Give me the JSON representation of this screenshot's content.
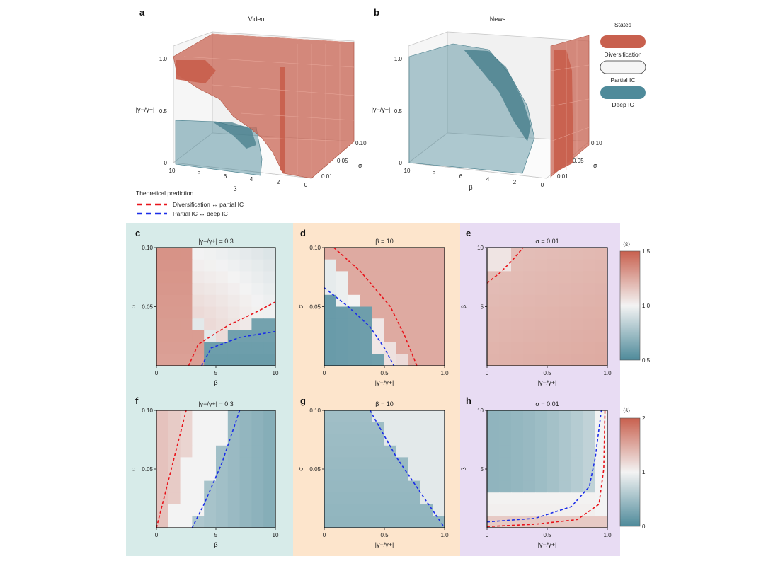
{
  "colors": {
    "diversification": "#c8604e",
    "partial_ic": "#f5f5f5",
    "deep_ic": "#4e8a9a",
    "red_line": "#e8141b",
    "blue_line": "#1b2ee8",
    "bg_teal": "#d7ebe9",
    "bg_orange": "#fde5cc",
    "bg_purple": "#e8dcf3"
  },
  "top": {
    "panel_a": {
      "letter": "a",
      "title": "Video",
      "z_label": "|γ−/γ+|",
      "x_label": "β",
      "y_label": "σ",
      "x_ticks": [
        "10",
        "8",
        "6",
        "4",
        "2",
        "0"
      ],
      "y_ticks": [
        "0.01",
        "0.05",
        "0.10"
      ],
      "z_ticks": [
        "0",
        "0.5",
        "1.0"
      ]
    },
    "panel_b": {
      "letter": "b",
      "title": "News",
      "z_label": "|γ−/γ+|",
      "x_label": "β",
      "y_label": "σ",
      "x_ticks": [
        "10",
        "8",
        "6",
        "4",
        "2",
        "0"
      ],
      "y_ticks": [
        "0.01",
        "0.05",
        "0.10"
      ],
      "z_ticks": [
        "0",
        "0.5",
        "1.0"
      ]
    },
    "states_legend": {
      "title": "States",
      "items": [
        "Diversification",
        "Partial IC",
        "Deep IC"
      ]
    },
    "theory_legend": {
      "title": "Theoretical prediction",
      "items": [
        "Diversification ↔ partial IC",
        "Partial IC ↔ deep IC"
      ]
    }
  },
  "colorbars": [
    {
      "label": "⟨s̄⟩",
      "ticks": [
        "1.5",
        "1.0",
        "0.5"
      ],
      "range": [
        0.5,
        1.5
      ]
    },
    {
      "label": "⟨s̄⟩",
      "ticks": [
        "2",
        "1",
        "0"
      ],
      "range": [
        0,
        2
      ]
    }
  ],
  "chart_data": [
    {
      "id": "c",
      "type": "heatmap",
      "title": "|γ−/γ+| = 0.3",
      "xlabel": "β",
      "ylabel": "σ",
      "xlim": [
        0,
        10
      ],
      "ylim": [
        0,
        0.1
      ],
      "xticks": [
        "0",
        "5",
        "10"
      ],
      "yticks": [
        "0.05",
        "0.10"
      ],
      "grid_shape": [
        10,
        10
      ],
      "value_range": [
        0.5,
        1.5
      ],
      "boundary_red": [
        [
          2.7,
          0.0
        ],
        [
          3.5,
          0.018
        ],
        [
          6.0,
          0.034
        ],
        [
          8.5,
          0.046
        ],
        [
          10,
          0.054
        ]
      ],
      "boundary_blue": [
        [
          3.8,
          0.0
        ],
        [
          4.6,
          0.015
        ],
        [
          7.0,
          0.024
        ],
        [
          10,
          0.029
        ]
      ]
    },
    {
      "id": "d",
      "type": "heatmap",
      "title": "β = 10",
      "xlabel": "|γ−/γ+|",
      "ylabel": "σ",
      "xlim": [
        0,
        1
      ],
      "ylim": [
        0,
        0.1
      ],
      "xticks": [
        "0",
        "0.5",
        "1.0"
      ],
      "yticks": [
        "0.05",
        "0.10"
      ],
      "grid_shape": [
        10,
        10
      ],
      "value_range": [
        0.5,
        1.5
      ],
      "boundary_red": [
        [
          0.08,
          0.1
        ],
        [
          0.3,
          0.08
        ],
        [
          0.55,
          0.05
        ],
        [
          0.67,
          0.025
        ],
        [
          0.77,
          0.0
        ]
      ],
      "boundary_blue": [
        [
          0.0,
          0.066
        ],
        [
          0.2,
          0.05
        ],
        [
          0.38,
          0.033
        ],
        [
          0.5,
          0.015
        ],
        [
          0.58,
          0.0
        ]
      ]
    },
    {
      "id": "e",
      "type": "heatmap",
      "title": "σ = 0.01",
      "xlabel": "|γ−/γ+|",
      "ylabel": "β",
      "xlim": [
        0,
        1
      ],
      "ylim": [
        0,
        10
      ],
      "xticks": [
        "0",
        "0.5",
        "1.0"
      ],
      "yticks": [
        "5",
        "10"
      ],
      "grid_shape": [
        10,
        10
      ],
      "value_range": [
        0.5,
        1.5
      ],
      "boundary_red": [
        [
          0.0,
          7.0
        ],
        [
          0.1,
          7.8
        ],
        [
          0.2,
          8.8
        ],
        [
          0.3,
          10
        ]
      ]
    },
    {
      "id": "f",
      "type": "heatmap",
      "title": "|γ−/γ+| = 0.3",
      "xlabel": "β",
      "ylabel": "σ",
      "xlim": [
        0,
        10
      ],
      "ylim": [
        0,
        0.1
      ],
      "xticks": [
        "0",
        "5",
        "10"
      ],
      "yticks": [
        "0.05",
        "0.10"
      ],
      "grid_shape": [
        10,
        10
      ],
      "value_range": [
        0,
        2
      ],
      "boundary_red": [
        [
          0.0,
          0.0
        ],
        [
          1.0,
          0.04
        ],
        [
          2.5,
          0.1
        ]
      ],
      "boundary_blue": [
        [
          3.0,
          0.0
        ],
        [
          4.0,
          0.02
        ],
        [
          5.5,
          0.055
        ],
        [
          7.0,
          0.1
        ]
      ]
    },
    {
      "id": "g",
      "type": "heatmap",
      "title": "β = 10",
      "xlabel": "|γ−/γ+|",
      "ylabel": "σ",
      "xlim": [
        0,
        1
      ],
      "ylim": [
        0,
        0.1
      ],
      "xticks": [
        "0",
        "0.5",
        "1.0"
      ],
      "yticks": [
        "0.05",
        "0.10"
      ],
      "grid_shape": [
        10,
        10
      ],
      "value_range": [
        0,
        2
      ],
      "boundary_blue": [
        [
          0.38,
          0.1
        ],
        [
          0.6,
          0.06
        ],
        [
          0.8,
          0.03
        ],
        [
          1.0,
          0.0
        ]
      ]
    },
    {
      "id": "h",
      "type": "heatmap",
      "title": "σ = 0.01",
      "xlabel": "|γ−/γ+|",
      "ylabel": "β",
      "xlim": [
        0,
        1
      ],
      "ylim": [
        0,
        10
      ],
      "xticks": [
        "0",
        "0.5",
        "1.0"
      ],
      "yticks": [
        "5",
        "10"
      ],
      "grid_shape": [
        10,
        10
      ],
      "value_range": [
        0,
        2
      ],
      "boundary_red": [
        [
          0.0,
          0.1
        ],
        [
          0.4,
          0.3
        ],
        [
          0.75,
          0.7
        ],
        [
          0.93,
          2.0
        ],
        [
          0.97,
          5.0
        ],
        [
          0.98,
          10
        ]
      ],
      "boundary_blue": [
        [
          0.0,
          0.5
        ],
        [
          0.4,
          0.8
        ],
        [
          0.7,
          1.8
        ],
        [
          0.85,
          3.5
        ],
        [
          0.9,
          6.0
        ],
        [
          0.95,
          10
        ]
      ]
    }
  ]
}
